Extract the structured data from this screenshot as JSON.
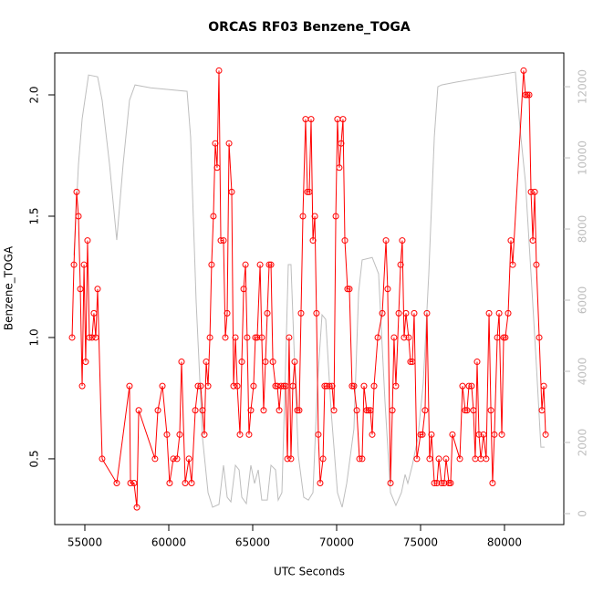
{
  "chart_data": {
    "type": "line",
    "title": "ORCAS RF03 Benzene_TOGA",
    "x_label": "UTC Seconds",
    "y_label": "Benzene_TOGA",
    "xlim": [
      53206,
      83534
    ],
    "ylim": [
      0.229,
      2.173
    ],
    "y2lim": [
      -308,
      12950
    ],
    "xticks": [
      55000,
      60000,
      65000,
      70000,
      75000,
      80000
    ],
    "yticks": [
      0.5,
      {
        "value": 1,
        "label": "1.0"
      },
      1.5,
      {
        "value": 2,
        "label": "2.0"
      }
    ],
    "y2ticks": [
      0,
      2000,
      4000,
      6000,
      8000,
      10000,
      12000
    ],
    "y2_color": "#bebebe",
    "series": [
      {
        "color": "#bebebe",
        "axis": "y2",
        "markers": false,
        "x": [
          54350,
          54620,
          54840,
          55220,
          55760,
          56030,
          56470,
          56900,
          57280,
          57660,
          57990,
          58910,
          61090,
          61300,
          61630,
          62010,
          62340,
          62610,
          62990,
          63260,
          63480,
          63700,
          63970,
          64190,
          64350,
          64620,
          64890,
          65110,
          65330,
          65540,
          65870,
          66090,
          66360,
          66520,
          66740,
          66960,
          67120,
          67280,
          67500,
          67720,
          68040,
          68320,
          68590,
          68860,
          69130,
          69350,
          69670,
          70050,
          70330,
          70600,
          71030,
          71310,
          71520,
          72120,
          72500,
          72880,
          73210,
          73530,
          73860,
          74080,
          74240,
          74510,
          74840,
          75160,
          75490,
          75820,
          76030,
          76250,
          77120,
          80650,
          80920,
          81250,
          81580,
          81900,
          82170,
          82390
        ],
        "values": [
          7260,
          9820,
          11100,
          12330,
          12280,
          11620,
          9820,
          7690,
          9820,
          11620,
          12050,
          11970,
          11870,
          10590,
          5970,
          2130,
          590,
          180,
          260,
          1360,
          460,
          330,
          1360,
          1230,
          460,
          280,
          1360,
          850,
          1230,
          380,
          380,
          1360,
          1230,
          380,
          590,
          4180,
          7000,
          7000,
          4180,
          1620,
          460,
          380,
          590,
          3670,
          5590,
          5460,
          2900,
          590,
          180,
          850,
          2380,
          6230,
          7130,
          7200,
          6740,
          3150,
          590,
          230,
          590,
          1100,
          850,
          1360,
          2130,
          3670,
          6740,
          10590,
          12000,
          12050,
          12130,
          12410,
          10850,
          9310,
          6740,
          4180,
          1870,
          1870
        ]
      },
      {
        "color": "#ff0000",
        "axis": "y",
        "markers": true,
        "x": [
          54240,
          54350,
          54510,
          54620,
          54730,
          54840,
          54950,
          55050,
          55160,
          55270,
          55430,
          55540,
          55650,
          55760,
          56030,
          56900,
          57660,
          57720,
          57930,
          58100,
          58210,
          59180,
          59350,
          59620,
          59890,
          60050,
          60270,
          60490,
          60650,
          60760,
          60980,
          61200,
          61360,
          61580,
          61740,
          61900,
          62010,
          62120,
          62230,
          62340,
          62450,
          62550,
          62660,
          62770,
          62880,
          62990,
          63100,
          63260,
          63370,
          63480,
          63590,
          63750,
          63860,
          63970,
          64080,
          64240,
          64350,
          64460,
          64570,
          64670,
          64780,
          64890,
          65050,
          65160,
          65270,
          65440,
          65540,
          65650,
          65760,
          65870,
          65980,
          66090,
          66200,
          66360,
          66470,
          66580,
          66690,
          66850,
          66960,
          67070,
          67170,
          67280,
          67390,
          67500,
          67660,
          67770,
          67880,
          67990,
          68150,
          68260,
          68370,
          68480,
          68590,
          68700,
          68800,
          68910,
          69020,
          69190,
          69290,
          69400,
          69570,
          69730,
          69840,
          69950,
          70050,
          70160,
          70270,
          70380,
          70490,
          70650,
          70760,
          70920,
          71030,
          71200,
          71360,
          71520,
          71630,
          71790,
          71900,
          72010,
          72120,
          72230,
          72450,
          72720,
          72940,
          73040,
          73210,
          73320,
          73420,
          73530,
          73700,
          73810,
          73910,
          74020,
          74130,
          74290,
          74400,
          74510,
          74620,
          74780,
          75000,
          75110,
          75270,
          75380,
          75540,
          75650,
          75820,
          75980,
          76090,
          76250,
          76410,
          76520,
          76690,
          76790,
          76900,
          77340,
          77500,
          77660,
          77770,
          77880,
          78040,
          78150,
          78260,
          78370,
          78480,
          78590,
          78750,
          78910,
          79080,
          79190,
          79290,
          79400,
          79570,
          79680,
          79840,
          79950,
          80050,
          80220,
          80380,
          80490,
          81140,
          81250,
          81360,
          81470,
          81580,
          81690,
          81800,
          81900,
          82070,
          82230,
          82340,
          82450
        ],
        "values": [
          1.0,
          1.3,
          1.6,
          1.5,
          1.2,
          0.8,
          1.3,
          0.9,
          1.4,
          1.0,
          1.0,
          1.1,
          1.0,
          1.2,
          0.5,
          0.4,
          0.8,
          0.4,
          0.4,
          0.3,
          0.7,
          0.5,
          0.7,
          0.8,
          0.6,
          0.4,
          0.5,
          0.5,
          0.6,
          0.9,
          0.4,
          0.5,
          0.4,
          0.7,
          0.8,
          0.8,
          0.7,
          0.6,
          0.9,
          0.8,
          1.0,
          1.3,
          1.5,
          1.8,
          1.7,
          2.1,
          1.4,
          1.4,
          1.0,
          1.1,
          1.8,
          1.6,
          0.8,
          1.0,
          0.8,
          0.6,
          0.9,
          1.2,
          1.3,
          1.0,
          0.6,
          0.7,
          0.8,
          1.0,
          1.0,
          1.3,
          1.0,
          0.7,
          0.9,
          1.1,
          1.3,
          1.3,
          0.9,
          0.8,
          0.8,
          0.7,
          0.8,
          0.8,
          0.8,
          0.5,
          1.0,
          0.5,
          0.8,
          0.9,
          0.7,
          0.7,
          1.1,
          1.5,
          1.9,
          1.6,
          1.6,
          1.9,
          1.4,
          1.5,
          1.1,
          0.6,
          0.4,
          0.5,
          0.8,
          0.8,
          0.8,
          0.8,
          0.7,
          1.5,
          1.9,
          1.7,
          1.8,
          1.9,
          1.4,
          1.2,
          1.2,
          0.8,
          0.8,
          0.7,
          0.5,
          0.5,
          0.8,
          0.7,
          0.7,
          0.7,
          0.6,
          0.8,
          1.0,
          1.1,
          1.4,
          1.2,
          0.4,
          0.7,
          1.0,
          0.8,
          1.1,
          1.3,
          1.4,
          1.0,
          1.1,
          1.0,
          0.9,
          0.9,
          1.1,
          0.5,
          0.6,
          0.6,
          0.7,
          1.1,
          0.5,
          0.6,
          0.4,
          0.4,
          0.5,
          0.4,
          0.4,
          0.5,
          0.4,
          0.4,
          0.6,
          0.5,
          0.8,
          0.7,
          0.7,
          0.8,
          0.8,
          0.7,
          0.5,
          0.9,
          0.6,
          0.5,
          0.6,
          0.5,
          1.1,
          0.7,
          0.4,
          0.6,
          1.0,
          1.1,
          0.6,
          1.0,
          1.0,
          1.1,
          1.4,
          1.3,
          2.1,
          2.0,
          2.0,
          2.0,
          1.6,
          1.4,
          1.6,
          1.3,
          1.0,
          0.7,
          0.8,
          0.6
        ]
      }
    ]
  }
}
